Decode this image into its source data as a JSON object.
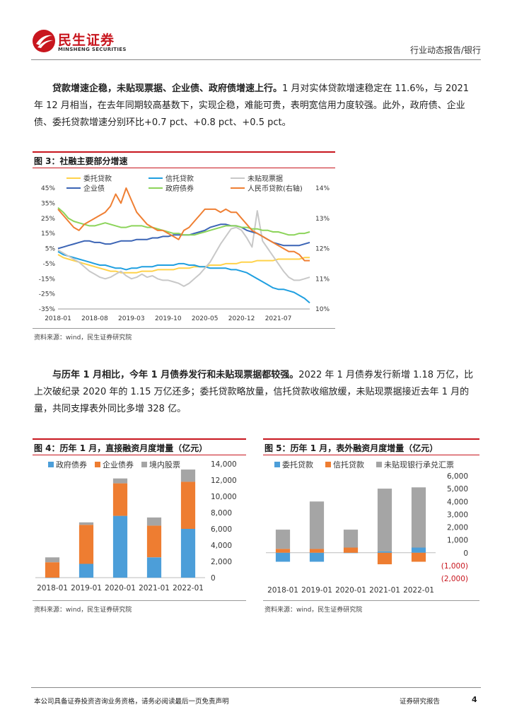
{
  "header": {
    "brand_cn": "民生证券",
    "brand_en": "MINSHENG SECURITIES",
    "category": "行业动态报告/银行"
  },
  "para1": {
    "bold": "贷款增速企稳，未贴现票据、企业债、政府债增速上行。",
    "text": "1 月对实体贷款增速稳定在 11.6%，与 2021 年 12 月相当，在去年同期较高基数下，实现企稳，难能可贵，表明宽信用力度较强。此外，政府债、企业债、委托贷款增速分别环比+0.7 pct、+0.8 pct、+0.5 pct。"
  },
  "fig3": {
    "title": "图 3：社融主要部分增速",
    "source": "资料来源：wind，民生证券研究院"
  },
  "para2": {
    "bold": "与历年 1 月相比，今年 1 月债券发行和未贴现票据都较强。",
    "text": "2022 年 1 月债券发行新增 1.18 万亿，比上次破纪录 2020 年的 1.15 万亿还多；委托贷款略放量，信托贷款收缩放缓，未贴现票据接近去年 1 月的量，共同支撑表外同比多增 328 亿。"
  },
  "fig4": {
    "title": "图 4：历年 1 月，直接融资月度增量（亿元）",
    "source": "资料来源：wind，民生证券研究院"
  },
  "fig5": {
    "title": "图 5：历年 1 月，表外融资月度增量（亿元）",
    "source": "资料来源：wind，民生证券研究院"
  },
  "footer": {
    "disclaimer": "本公司具备证券投资咨询业务资格，请务必阅读最后一页免责声明",
    "doc_type": "证券研究报告",
    "page": "4"
  },
  "chart_data": [
    {
      "id": "fig3",
      "type": "line",
      "title": "图 3：社融主要部分增速",
      "x_tick_labels": [
        "2018-01",
        "2018-08",
        "2019-03",
        "2019-10",
        "2020-05",
        "2020-12",
        "2021-07"
      ],
      "x_range": [
        0,
        48
      ],
      "y_left": {
        "ticks": [
          "45%",
          "35%",
          "25%",
          "15%",
          "5%",
          "-5%",
          "-15%",
          "-25%",
          "-35%"
        ],
        "range": [
          -35,
          45
        ]
      },
      "y_right": {
        "ticks": [
          "14%",
          "13%",
          "12%",
          "11%",
          "10%"
        ],
        "range": [
          10,
          14
        ]
      },
      "series": [
        {
          "name": "委托贷款",
          "color": "#ffd24a",
          "axis": "left",
          "values": [
            1,
            -1,
            -2,
            -3,
            -4,
            -5,
            -6,
            -7,
            -8,
            -9,
            -10,
            -10,
            -11,
            -11,
            -11,
            -11,
            -10,
            -10,
            -10,
            -9,
            -9,
            -9,
            -9,
            -8,
            -8,
            -8,
            -7,
            -7,
            -7,
            -6,
            -6,
            -6,
            -5,
            -5,
            -5,
            -4,
            -4,
            -4,
            -3,
            -3,
            -3,
            -3,
            -2,
            -2,
            -2,
            -2,
            -2,
            -1,
            -1
          ]
        },
        {
          "name": "信托贷款",
          "color": "#1f9fe0",
          "axis": "left",
          "values": [
            3,
            1,
            0,
            -1,
            -2,
            -3,
            -4,
            -5,
            -6,
            -6,
            -7,
            -8,
            -8,
            -9,
            -8,
            -8,
            -7,
            -7,
            -7,
            -6,
            -6,
            -6,
            -6,
            -5,
            -5,
            -6,
            -6,
            -7,
            -7,
            -8,
            -8,
            -8,
            -8,
            -9,
            -9,
            -10,
            -11,
            -13,
            -15,
            -17,
            -19,
            -21,
            -22,
            -22,
            -23,
            -24,
            -26,
            -28,
            -31
          ]
        },
        {
          "name": "未贴现票据",
          "color": "#c8c8c8",
          "axis": "left",
          "values": [
            4,
            2,
            0,
            -2,
            -4,
            -7,
            -10,
            -12,
            -14,
            -15,
            -14,
            -12,
            -10,
            -13,
            -15,
            -14,
            -12,
            -14,
            -13,
            -15,
            -16,
            -16,
            -17,
            -18,
            -20,
            -18,
            -15,
            -12,
            -8,
            -4,
            2,
            8,
            13,
            18,
            19,
            17,
            12,
            6,
            30,
            10,
            5,
            0,
            -5,
            -10,
            -14,
            -16,
            -16,
            -15,
            -14
          ]
        },
        {
          "name": "企业债",
          "color": "#3b64b5",
          "axis": "left",
          "values": [
            5,
            6,
            7,
            8,
            9,
            10,
            10,
            9,
            9,
            8,
            8,
            9,
            10,
            10,
            10,
            11,
            11,
            11,
            12,
            12,
            13,
            13,
            14,
            14,
            14,
            14,
            15,
            16,
            17,
            19,
            20,
            21,
            21,
            20,
            20,
            19,
            17,
            16,
            15,
            13,
            11,
            9,
            8,
            7,
            7,
            7,
            7,
            8,
            9
          ]
        },
        {
          "name": "政府债券",
          "color": "#8cd45a",
          "axis": "left",
          "values": [
            32,
            29,
            25,
            23,
            22,
            21,
            20,
            20,
            21,
            22,
            21,
            20,
            19,
            19,
            20,
            20,
            20,
            19,
            19,
            18,
            17,
            16,
            15,
            15,
            14,
            14,
            14,
            15,
            16,
            17,
            18,
            19,
            20,
            20,
            20,
            19,
            19,
            18,
            18,
            17,
            17,
            16,
            16,
            15,
            14,
            14,
            15,
            15,
            16
          ]
        },
        {
          "name": "人民币贷款(右轴)",
          "color": "#ef7f33",
          "axis": "right",
          "values": [
            13.3,
            13.1,
            12.9,
            12.7,
            12.6,
            12.8,
            12.9,
            13.0,
            13.1,
            13.2,
            13.4,
            13.8,
            13.5,
            14.0,
            13.6,
            13.2,
            13.0,
            12.8,
            12.7,
            12.6,
            12.6,
            12.5,
            12.4,
            12.3,
            12.6,
            12.7,
            12.9,
            13.1,
            13.3,
            13.3,
            13.3,
            13.2,
            13.3,
            13.2,
            13.2,
            13.0,
            12.8,
            12.6,
            12.5,
            12.4,
            12.3,
            12.2,
            12.1,
            12.0,
            11.9,
            11.9,
            11.8,
            11.6,
            11.6
          ]
        }
      ]
    },
    {
      "id": "fig4",
      "type": "bar",
      "stacked": true,
      "title": "图 4：历年 1 月，直接融资月度增量（亿元）",
      "categories": [
        "2018-01",
        "2019-01",
        "2020-01",
        "2021-01",
        "2022-01"
      ],
      "y_ticks": [
        "14,000",
        "12,000",
        "10,000",
        "8,000",
        "6,000",
        "4,000",
        "2,000",
        "0"
      ],
      "ylim": [
        0,
        14000
      ],
      "series": [
        {
          "name": "政府债券",
          "color": "#4c9ed9",
          "values": [
            0,
            1700,
            7600,
            2500,
            6000
          ]
        },
        {
          "name": "企业债券",
          "color": "#ee7d31",
          "values": [
            1900,
            4800,
            4000,
            3900,
            5800
          ]
        },
        {
          "name": "境内股票",
          "color": "#a5a5a5",
          "values": [
            600,
            300,
            600,
            1000,
            1500
          ]
        }
      ]
    },
    {
      "id": "fig5",
      "type": "bar",
      "stacked": true,
      "title": "图 5：历年 1 月，表外融资月度增量（亿元）",
      "categories": [
        "2018-01",
        "2019-01",
        "2020-01",
        "2021-01",
        "2022-01"
      ],
      "y_ticks": [
        "6,000",
        "5,000",
        "4,000",
        "3,000",
        "2,000",
        "1,000",
        "0",
        "(1,000)",
        "(2,000)"
      ],
      "ylim": [
        -2000,
        6000
      ],
      "series": [
        {
          "name": "委托贷款",
          "color": "#4c9ed9",
          "values": [
            -700,
            -700,
            0,
            100,
            400
          ]
        },
        {
          "name": "信托贷款",
          "color": "#ee7d31",
          "values": [
            300,
            300,
            400,
            -900,
            -700
          ]
        },
        {
          "name": "未贴现银行承兑汇票",
          "color": "#a5a5a5",
          "values": [
            1500,
            3700,
            1400,
            4900,
            4700
          ]
        }
      ]
    }
  ]
}
